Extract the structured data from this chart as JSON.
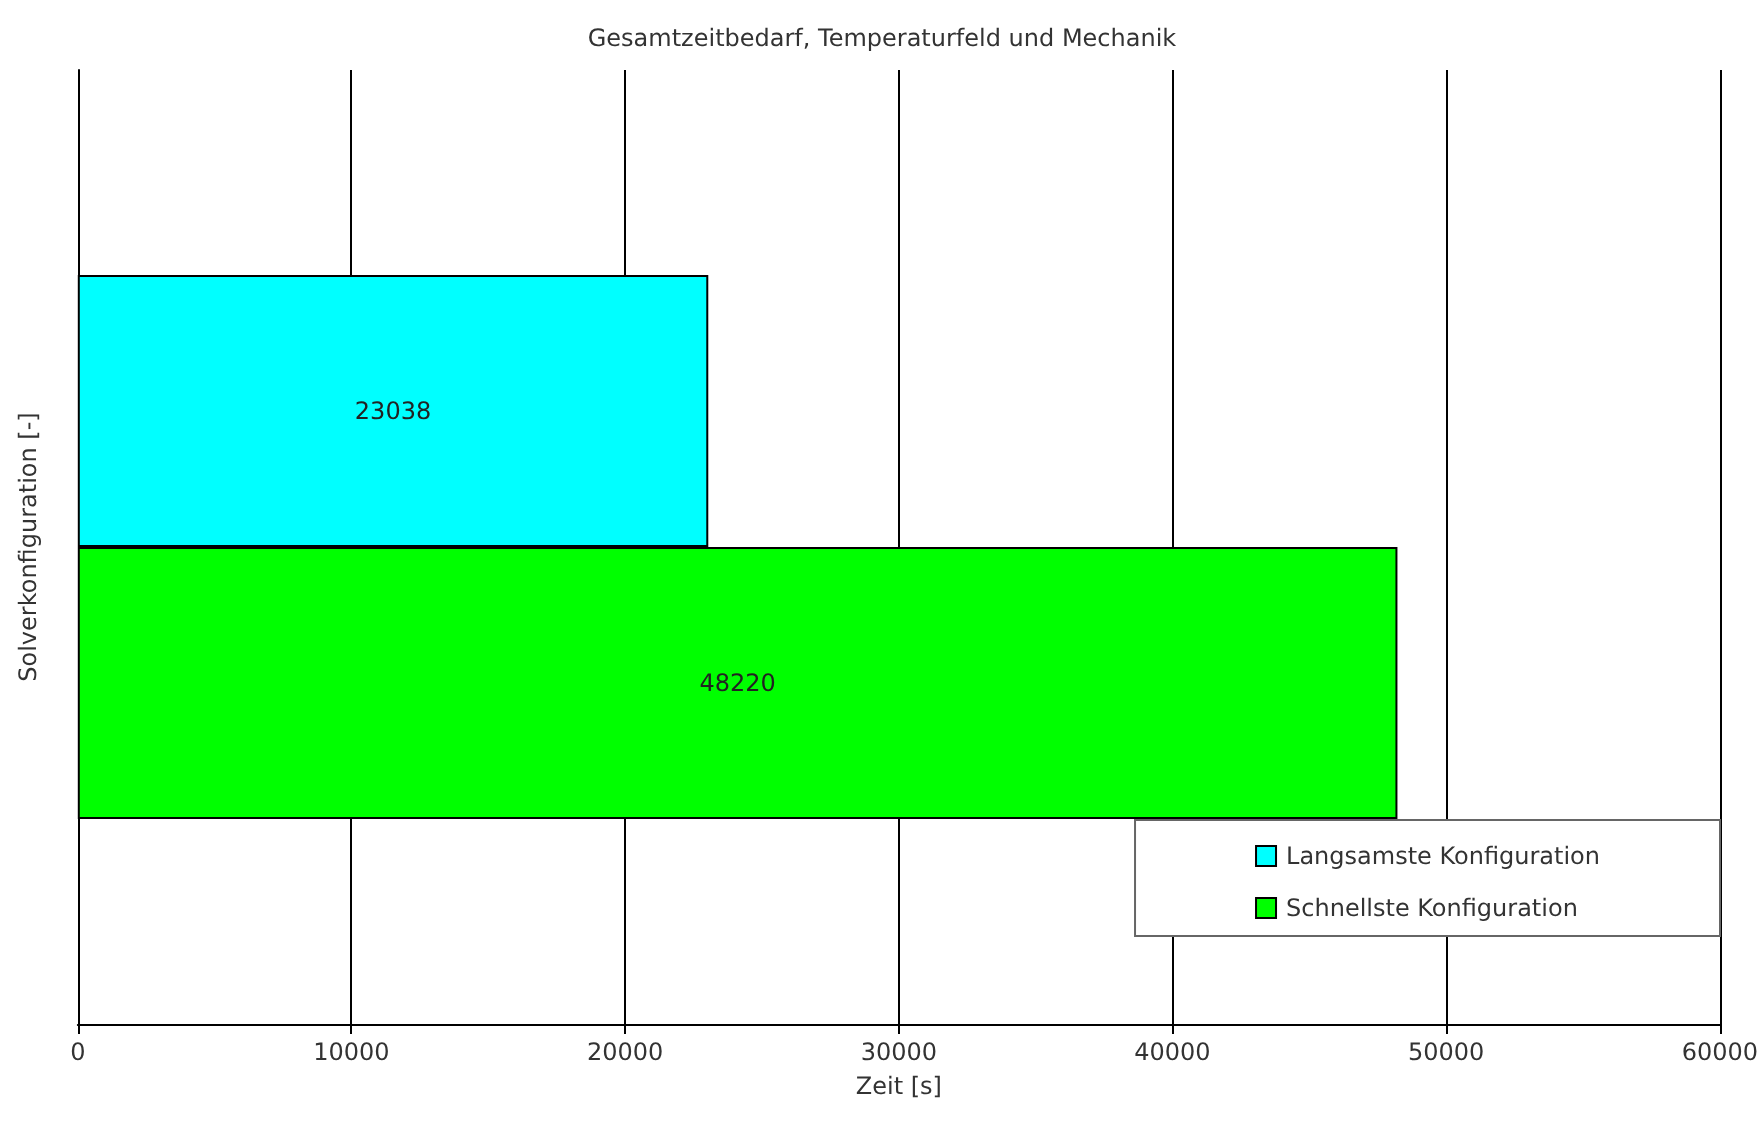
{
  "chart_data": {
    "type": "bar",
    "orientation": "horizontal",
    "title": "Gesamtzeitbedarf, Temperaturfeld und Mechanik",
    "xlabel": "Zeit [s]",
    "ylabel": "Solverkonfiguration [-]",
    "categories": [
      null
    ],
    "series": [
      {
        "name": "Langsamste Konfiguration",
        "color": "#00ffff",
        "values": [
          23038
        ]
      },
      {
        "name": "Schnellste Konfiguration",
        "color": "#00ff00",
        "values": [
          48220
        ]
      }
    ],
    "xlim": [
      0,
      60000
    ],
    "xticks": [
      0,
      10000,
      20000,
      30000,
      40000,
      50000,
      60000
    ],
    "grid": "x",
    "legend": "bottom right",
    "data_labels": true
  }
}
